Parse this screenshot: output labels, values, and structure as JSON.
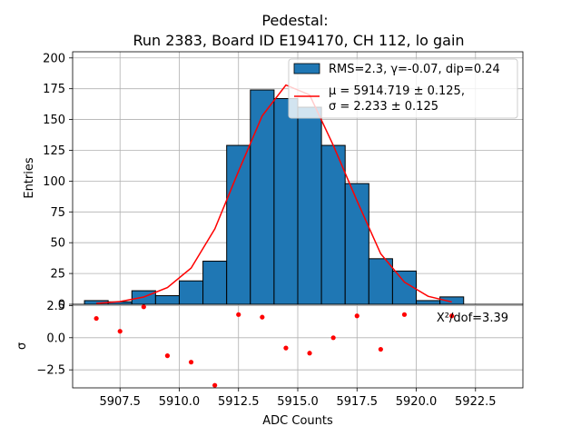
{
  "chart_data": {
    "title_line1": "Pedestal:",
    "title_line2": "Run 2383, Board ID E194170, CH 112, lo gain",
    "xlabel": "ADC Counts",
    "top": {
      "type": "bar",
      "ylabel": "Entries",
      "xlim": [
        5905.5,
        5924.5
      ],
      "ylim": [
        0,
        205
      ],
      "yticks": [
        0,
        25,
        50,
        75,
        100,
        125,
        150,
        175,
        200
      ],
      "bin_width": 1,
      "bin_left_edges": [
        5906,
        5907,
        5908,
        5909,
        5910,
        5911,
        5912,
        5913,
        5914,
        5915,
        5916,
        5917,
        5918,
        5919,
        5920,
        5921
      ],
      "values": [
        3,
        2,
        11,
        7,
        19,
        35,
        129,
        174,
        167,
        160,
        129,
        98,
        37,
        27,
        3,
        6
      ],
      "fit_x": [
        5906.5,
        5907.5,
        5908.5,
        5909.5,
        5910.5,
        5911.5,
        5912.5,
        5913.5,
        5914.5,
        5915.5,
        5916.5,
        5917.5,
        5918.5,
        5919.5,
        5920.5,
        5921.5
      ],
      "fit_y": [
        0.7,
        2.2,
        5.9,
        13.6,
        29.4,
        61.2,
        108,
        153,
        178,
        170,
        129,
        84,
        41,
        18,
        6.5,
        1.9
      ],
      "bar_color": "#1f77b4",
      "fit_color": "#ff0000",
      "legend": [
        {
          "label": "RMS=2.3, γ=-0.07, dip=0.24",
          "kind": "patch"
        },
        {
          "label_line1": "μ = 5914.719 ± 0.125,",
          "label_line2": "σ = 2.233 ± 0.125",
          "kind": "line"
        }
      ],
      "legend_loc": "upper right"
    },
    "bottom": {
      "type": "scatter",
      "ylabel": "σ",
      "ylim": [
        -3.9,
        2.6
      ],
      "yticks": [
        -2.5,
        0.0,
        2.5
      ],
      "ytick_labels": [
        "−2.5",
        "0.0",
        "2.5"
      ],
      "x": [
        5906.5,
        5907.5,
        5908.5,
        5909.5,
        5910.5,
        5911.5,
        5912.5,
        5913.5,
        5914.5,
        5915.5,
        5916.5,
        5917.5,
        5918.5,
        5919.5,
        5920.5,
        5921.5
      ],
      "y": [
        1.5,
        0.5,
        2.4,
        -1.4,
        -1.9,
        -3.7,
        1.8,
        1.6,
        -0.8,
        -1.2,
        0.0,
        1.7,
        -0.9,
        1.8,
        null,
        1.7
      ],
      "point_color": "#ff0000",
      "annotation": "X²/dof=3.39"
    },
    "xticks": [
      5907.5,
      5910.0,
      5912.5,
      5915.0,
      5917.5,
      5920.0,
      5922.5
    ],
    "xtick_labels": [
      "5907.5",
      "5910.0",
      "5912.5",
      "5915.0",
      "5917.5",
      "5920.0",
      "5922.5"
    ]
  }
}
